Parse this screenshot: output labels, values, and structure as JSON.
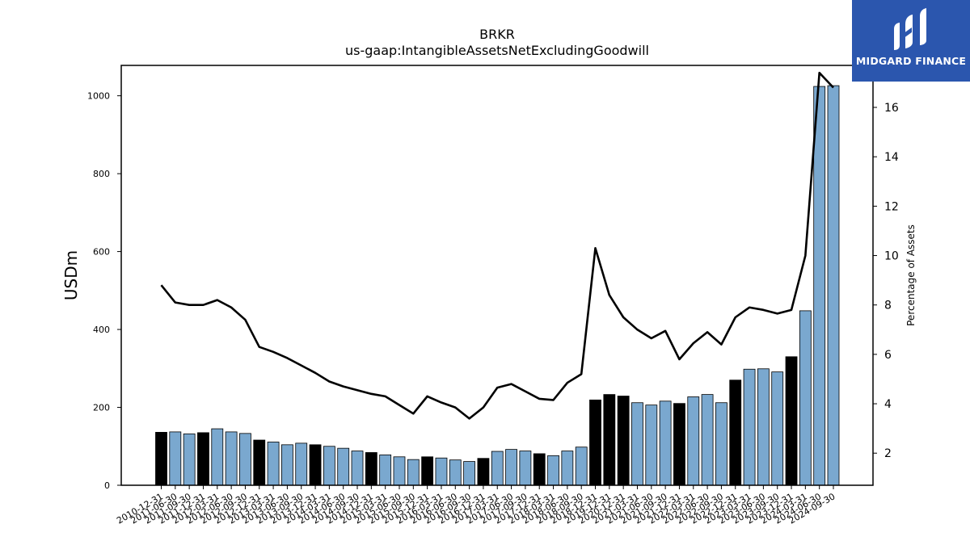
{
  "colors": {
    "bar_highlight": "#000000",
    "bar_default": "#7aa8cf",
    "line": "#000000",
    "logo_bg": "#2b56ae"
  },
  "logo": {
    "text": "MIDGARD FINANCE",
    "icon": "midgard-logo-icon"
  },
  "chart_data": {
    "type": "bar",
    "title": "BRKR",
    "subtitle": "us-gaap:IntangibleAssetsNetExcludingGoodwill",
    "ylabel": "USDm",
    "y2label": "Percentage of Assets",
    "ylim": [
      0,
      1078
    ],
    "y2lim": [
      0.7,
      17.7
    ],
    "yticks": [
      0,
      200,
      400,
      600,
      800,
      1000
    ],
    "y2ticks": [
      2,
      4,
      6,
      8,
      10,
      12,
      14,
      16
    ],
    "categories": [
      "2010-12-31",
      "2011-06-30",
      "2011-09-30",
      "2011-12-31",
      "2012-03-31",
      "2012-06-30",
      "2012-09-30",
      "2012-12-31",
      "2013-03-31",
      "2013-06-30",
      "2013-09-30",
      "2013-12-31",
      "2014-03-31",
      "2014-06-30",
      "2014-09-30",
      "2014-12-31",
      "2015-03-31",
      "2015-06-30",
      "2015-09-30",
      "2015-12-31",
      "2016-03-31",
      "2016-06-30",
      "2016-09-30",
      "2016-12-31",
      "2017-03-31",
      "2017-06-30",
      "2017-09-30",
      "2017-12-31",
      "2018-03-31",
      "2018-06-30",
      "2018-09-30",
      "2018-12-31",
      "2019-12-31",
      "2020-12-31",
      "2021-03-31",
      "2021-06-30",
      "2021-09-30",
      "2021-12-31",
      "2022-03-31",
      "2022-06-30",
      "2022-09-30",
      "2022-12-31",
      "2023-03-31",
      "2023-06-30",
      "2023-09-30",
      "2023-12-31",
      "2024-03-31",
      "2024-06-30",
      "2024-09-30"
    ],
    "series": [
      {
        "type": "bar",
        "values": [
          136,
          137,
          132,
          135,
          145,
          137,
          133,
          116,
          111,
          104,
          108,
          104,
          100,
          95,
          88,
          84,
          78,
          73,
          66,
          73,
          70,
          65,
          61,
          69,
          87,
          92,
          88,
          81,
          76,
          88,
          98,
          219,
          233,
          229,
          212,
          206,
          216,
          210,
          227,
          233,
          212,
          270,
          298,
          299,
          291,
          330,
          448,
          1024,
          1026
        ],
        "highlight": [
          true,
          false,
          false,
          true,
          false,
          false,
          false,
          true,
          false,
          false,
          false,
          true,
          false,
          false,
          false,
          true,
          false,
          false,
          false,
          true,
          false,
          false,
          false,
          true,
          false,
          false,
          false,
          true,
          false,
          false,
          false,
          true,
          true,
          true,
          false,
          false,
          false,
          true,
          false,
          false,
          false,
          true,
          false,
          false,
          false,
          true,
          false,
          false,
          false
        ]
      },
      {
        "type": "line",
        "axis": "right",
        "values": [
          8.8,
          8.1,
          8.0,
          8.0,
          8.2,
          7.9,
          7.4,
          6.3,
          6.1,
          5.85,
          5.55,
          5.25,
          4.9,
          4.7,
          4.55,
          4.4,
          4.3,
          3.95,
          3.6,
          4.3,
          4.05,
          3.85,
          3.4,
          3.85,
          4.65,
          4.8,
          4.5,
          4.2,
          4.15,
          4.85,
          5.2,
          10.3,
          8.4,
          7.5,
          7.0,
          6.65,
          6.95,
          5.8,
          6.45,
          6.9,
          6.4,
          7.5,
          7.9,
          7.8,
          7.65,
          7.8,
          10.0,
          17.4,
          16.8
        ]
      }
    ],
    "grid": false,
    "legend": "none"
  }
}
